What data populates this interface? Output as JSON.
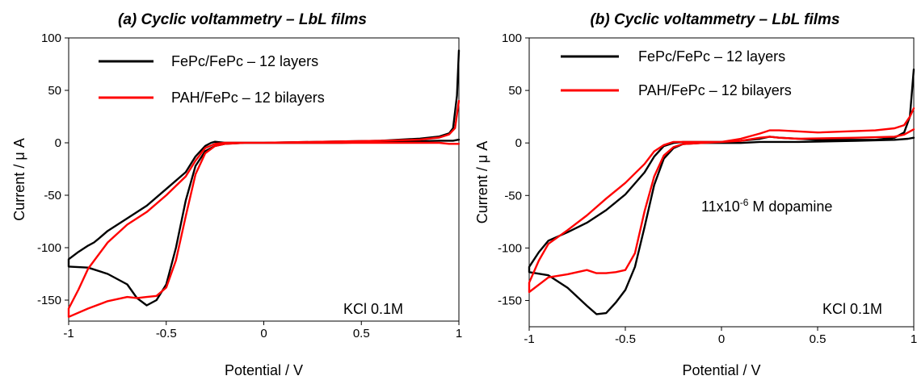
{
  "chart_data": [
    {
      "type": "line",
      "title": "(a) Cyclic voltammetry – LbL films",
      "xlabel": "Potential / V",
      "ylabel": "Current  / μ A",
      "xlim": [
        -1,
        1
      ],
      "ylim": [
        -170,
        100
      ],
      "xticks": [
        "-1",
        "-0.5",
        "0",
        "0.5",
        "1"
      ],
      "yticks": [
        "100",
        "50",
        "0",
        "-50",
        "-100",
        "-150"
      ],
      "annotations": [
        "KCl 0.1M"
      ],
      "legend_position": "top-left",
      "series": [
        {
          "name": "FePc/FePc – 12 layers",
          "color": "#000000",
          "x": [
            1.0,
            0.97,
            0.9,
            0.7,
            0.4,
            0.1,
            -0.1,
            -0.2,
            -0.25,
            -0.3,
            -0.35,
            -0.4,
            -0.45,
            -0.5,
            -0.55,
            -0.6,
            -0.65,
            -0.7,
            -0.8,
            -0.9,
            -1.0,
            -1.0,
            -0.95,
            -0.9,
            -0.87,
            -0.85,
            -0.8,
            -0.7,
            -0.6,
            -0.5,
            -0.4,
            -0.35,
            -0.3,
            -0.27,
            -0.25,
            -0.2,
            -0.1,
            0.0,
            0.3,
            0.6,
            0.8,
            0.9,
            0.95,
            0.97,
            0.99,
            1.0
          ],
          "y": [
            3,
            2,
            2,
            1,
            0,
            0,
            0,
            -1,
            -3,
            -8,
            -22,
            -55,
            -100,
            -135,
            -150,
            -155,
            -148,
            -135,
            -125,
            -119,
            -118,
            -111,
            -104,
            -98,
            -95,
            -92,
            -84,
            -72,
            -60,
            -44,
            -28,
            -13,
            -3,
            0,
            1,
            0,
            0,
            0,
            1,
            2,
            4,
            6,
            9,
            14,
            45,
            88
          ]
        },
        {
          "name": "PAH/FePc – 12 bilayers",
          "color": "#ff0000",
          "x": [
            1.0,
            0.95,
            0.9,
            0.7,
            0.4,
            0.1,
            -0.1,
            -0.2,
            -0.25,
            -0.3,
            -0.35,
            -0.4,
            -0.45,
            -0.5,
            -0.55,
            -0.6,
            -0.65,
            -0.7,
            -0.8,
            -0.9,
            -1.0,
            -1.0,
            -0.95,
            -0.9,
            -0.8,
            -0.7,
            -0.6,
            -0.5,
            -0.4,
            -0.35,
            -0.3,
            -0.25,
            -0.2,
            -0.1,
            0.0,
            0.3,
            0.6,
            0.8,
            0.9,
            0.95,
            0.98,
            1.0
          ],
          "y": [
            -1,
            -1,
            0,
            0,
            0,
            0,
            0,
            -1,
            -3,
            -10,
            -30,
            -70,
            -112,
            -138,
            -146,
            -147,
            -148,
            -147,
            -151,
            -158,
            -166,
            -158,
            -140,
            -120,
            -95,
            -78,
            -66,
            -50,
            -32,
            -17,
            -5,
            -1,
            0,
            0,
            0,
            1,
            2,
            3,
            5,
            8,
            14,
            40
          ]
        }
      ]
    },
    {
      "type": "line",
      "title": "(b) Cyclic voltammetry – LbL films",
      "xlabel": "Potential / V",
      "ylabel": "Current  / μ A",
      "xlim": [
        -1,
        1
      ],
      "ylim": [
        -175,
        100
      ],
      "xticks": [
        "-1",
        "-0.5",
        "0",
        "0.5",
        "1"
      ],
      "yticks": [
        "100",
        "50",
        "0",
        "-50",
        "-100",
        "-150"
      ],
      "annotations": [
        "11x10-6 M dopamine",
        "KCl 0.1M"
      ],
      "legend_position": "top-left",
      "series": [
        {
          "name": "FePc/FePc – 12 layers",
          "color": "#000000",
          "x": [
            1.0,
            0.97,
            0.9,
            0.7,
            0.4,
            0.3,
            0.25,
            0.2,
            0.1,
            -0.1,
            -0.2,
            -0.25,
            -0.3,
            -0.35,
            -0.4,
            -0.45,
            -0.5,
            -0.55,
            -0.6,
            -0.65,
            -0.7,
            -0.8,
            -0.9,
            -1.0,
            -1.0,
            -0.95,
            -0.9,
            -0.8,
            -0.7,
            -0.6,
            -0.5,
            -0.4,
            -0.35,
            -0.3,
            -0.25,
            -0.2,
            -0.1,
            0.0,
            0.1,
            0.2,
            0.25,
            0.3,
            0.5,
            0.8,
            0.9,
            0.95,
            0.98,
            1.0
          ],
          "y": [
            5,
            4,
            3,
            2,
            1,
            1,
            1,
            1,
            0,
            0,
            -1,
            -5,
            -15,
            -40,
            -80,
            -118,
            -140,
            -152,
            -162,
            -163,
            -155,
            -138,
            -126,
            -123,
            -118,
            -104,
            -93,
            -85,
            -76,
            -64,
            -49,
            -28,
            -13,
            -3,
            0,
            1,
            1,
            1,
            2,
            4,
            6,
            5,
            3,
            3,
            5,
            10,
            25,
            70
          ]
        },
        {
          "name": "PAH/FePc – 12 bilayers",
          "color": "#ff0000",
          "x": [
            1.0,
            0.95,
            0.9,
            0.7,
            0.4,
            0.3,
            0.25,
            0.2,
            0.1,
            -0.1,
            -0.2,
            -0.25,
            -0.3,
            -0.35,
            -0.4,
            -0.45,
            -0.5,
            -0.55,
            -0.6,
            -0.65,
            -0.7,
            -0.8,
            -0.9,
            -1.0,
            -1.0,
            -0.95,
            -0.9,
            -0.8,
            -0.7,
            -0.6,
            -0.5,
            -0.4,
            -0.35,
            -0.3,
            -0.25,
            -0.2,
            -0.1,
            0.0,
            0.1,
            0.2,
            0.25,
            0.3,
            0.5,
            0.8,
            0.9,
            0.95,
            0.98,
            1.0
          ],
          "y": [
            13,
            8,
            6,
            5,
            4,
            5,
            6,
            5,
            2,
            0,
            -1,
            -4,
            -12,
            -32,
            -65,
            -105,
            -121,
            -123,
            -124,
            -124,
            -121,
            -125,
            -128,
            -142,
            -133,
            -112,
            -96,
            -83,
            -69,
            -53,
            -38,
            -20,
            -8,
            -2,
            1,
            1,
            1,
            1,
            4,
            9,
            12,
            12,
            10,
            12,
            14,
            17,
            25,
            33
          ]
        }
      ]
    }
  ]
}
